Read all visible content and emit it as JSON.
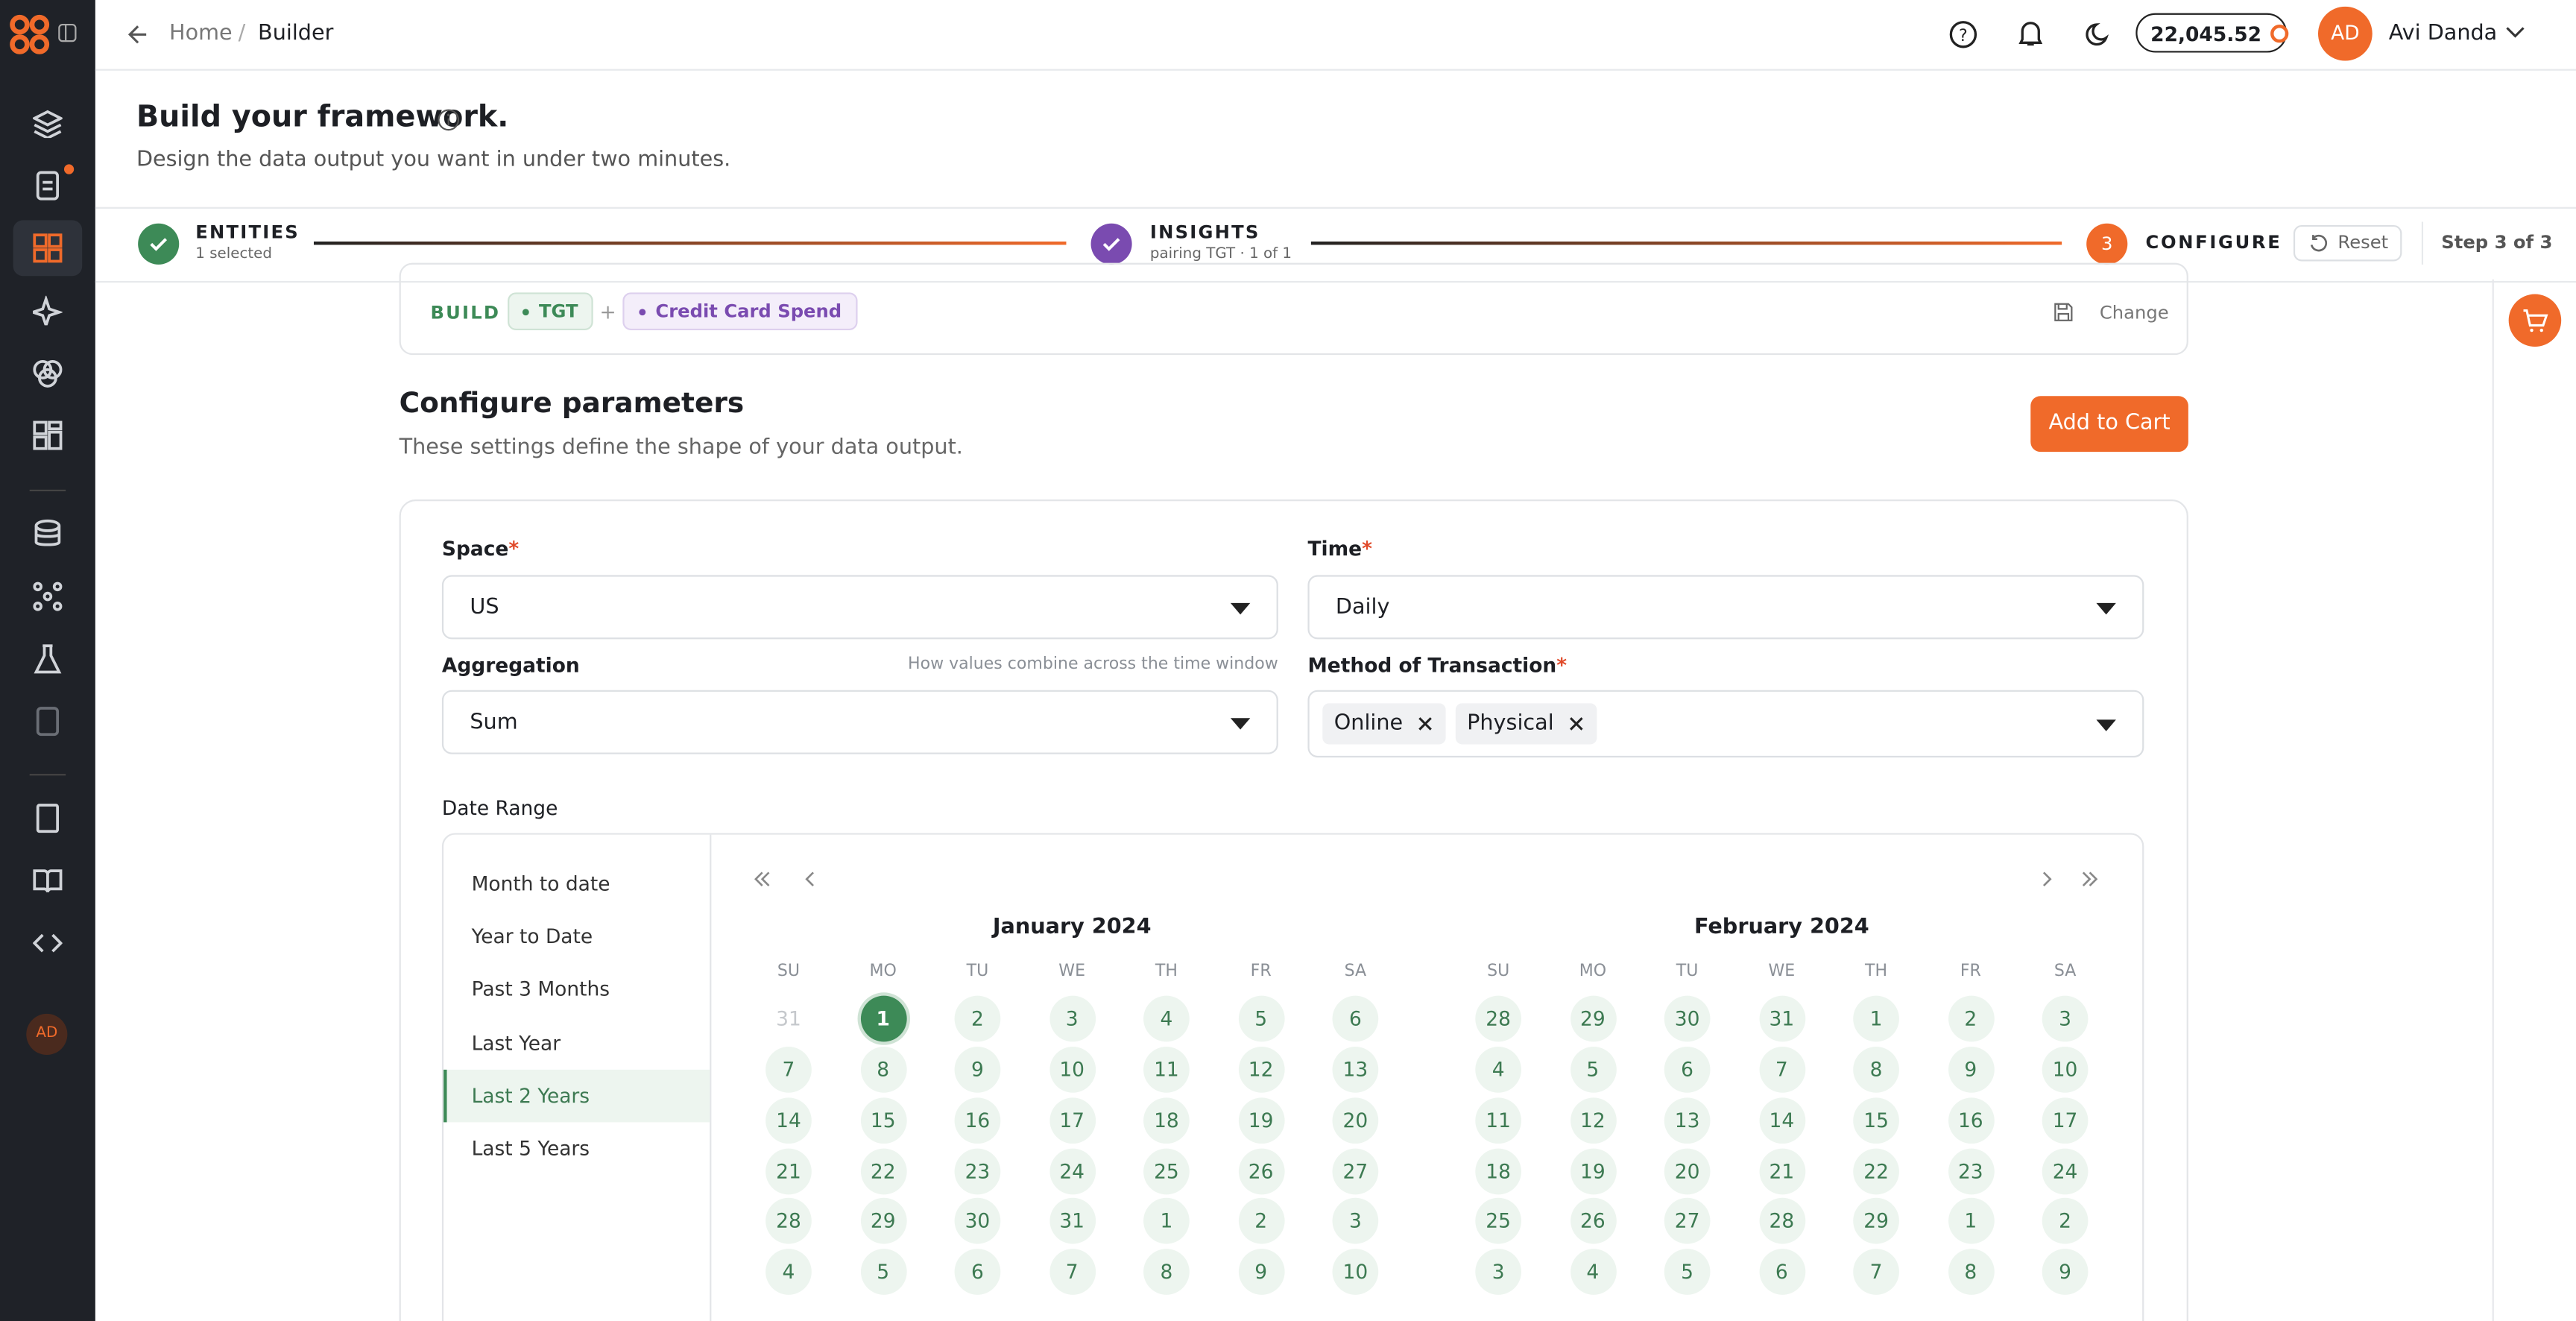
{
  "header": {
    "breadcrumb": [
      "Home",
      "Builder"
    ],
    "credits": "22,045.52",
    "avatar": "AD",
    "user": "Avi Danda"
  },
  "page": {
    "title": "Build your framework.",
    "subtitle": "Design the data output you want in under two minutes."
  },
  "steps": [
    {
      "label": "ENTITIES",
      "sub": "1 selected"
    },
    {
      "label": "INSIGHTS",
      "sub": "pairing TGT · 1 of 1"
    },
    {
      "number": "3",
      "label": "CONFIGURE"
    }
  ],
  "step_actions": {
    "reset": "Reset",
    "count": "Step 3 of 3"
  },
  "build": {
    "label": "BUILD",
    "chips": [
      "TGT",
      "Credit Card Spend"
    ],
    "joiner": "+",
    "change": "Change"
  },
  "section": {
    "title": "Configure parameters",
    "subtitle": "These settings define the shape of your data output.",
    "button": "Add to Cart"
  },
  "form": {
    "required_mark": "*",
    "space": {
      "label": "Space",
      "value": "US"
    },
    "time": {
      "label": "Time",
      "value": "Daily"
    },
    "aggregation": {
      "label": "Aggregation",
      "hint": "How values combine across the time window",
      "value": "Sum"
    },
    "method": {
      "label": "Method of Transaction",
      "tags": [
        "Online",
        "Physical"
      ]
    }
  },
  "date_range": {
    "label": "Date Range",
    "presets": [
      {
        "label": "Month to date"
      },
      {
        "label": "Year to Date"
      },
      {
        "label": "Past 3 Months"
      },
      {
        "label": "Last Year"
      },
      {
        "label": "Last 2 Years",
        "selected": true
      },
      {
        "label": "Last 5 Years"
      }
    ],
    "weekdays": [
      "SU",
      "MO",
      "TU",
      "WE",
      "TH",
      "FR",
      "SA"
    ],
    "months": [
      {
        "title": "January 2024",
        "dimmed_cells": [
          0
        ],
        "selected_cells": [
          1
        ],
        "days": [
          31,
          1,
          2,
          3,
          4,
          5,
          6,
          7,
          8,
          9,
          10,
          11,
          12,
          13,
          14,
          15,
          16,
          17,
          18,
          19,
          20,
          21,
          22,
          23,
          24,
          25,
          26,
          27,
          28,
          29,
          30,
          31,
          1,
          2,
          3,
          4,
          5,
          6,
          7,
          8,
          9,
          10
        ]
      },
      {
        "title": "February 2024",
        "dimmed_cells": [],
        "selected_cells": [],
        "days": [
          28,
          29,
          30,
          31,
          1,
          2,
          3,
          4,
          5,
          6,
          7,
          8,
          9,
          10,
          11,
          12,
          13,
          14,
          15,
          16,
          17,
          18,
          19,
          20,
          21,
          22,
          23,
          24,
          25,
          26,
          27,
          28,
          29,
          1,
          2,
          3,
          4,
          5,
          6,
          7,
          8,
          9
        ]
      }
    ]
  },
  "sidebar": {
    "avatar": "AD"
  }
}
